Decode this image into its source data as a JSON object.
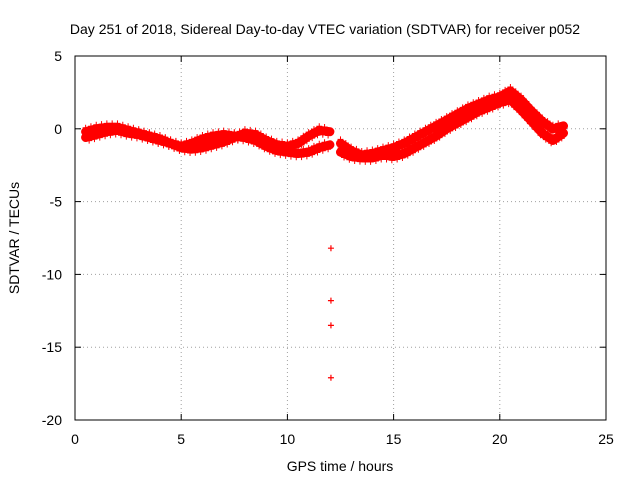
{
  "chart_data": {
    "type": "scatter",
    "title": "Day 251 of 2018, Sidereal Day-to-day VTEC variation (SDTVAR) for receiver p052",
    "xlabel": "GPS time / hours",
    "ylabel": "SDTVAR / TECUs",
    "xlim": [
      0,
      25
    ],
    "ylim": [
      -20,
      5
    ],
    "x_ticks": [
      0,
      5,
      10,
      15,
      20,
      25
    ],
    "y_ticks": [
      5,
      0,
      -5,
      -10,
      -15,
      -20
    ],
    "grid": true,
    "marker": "+",
    "series": [
      {
        "name": "SDTVAR",
        "color": "#ff0000",
        "tracks": [
          [
            [
              0.5,
              -0.6
            ],
            [
              1,
              -0.4
            ],
            [
              1.5,
              -0.2
            ],
            [
              2,
              -0.1
            ],
            [
              2.5,
              -0.3
            ],
            [
              3,
              -0.4
            ],
            [
              3.5,
              -0.6
            ],
            [
              4,
              -0.8
            ],
            [
              4.5,
              -1.0
            ],
            [
              5,
              -1.2
            ],
            [
              5.5,
              -1.0
            ],
            [
              6,
              -0.7
            ],
            [
              6.5,
              -0.5
            ],
            [
              7,
              -0.4
            ],
            [
              7.5,
              -0.5
            ],
            [
              8,
              -0.6
            ],
            [
              8.5,
              -0.8
            ],
            [
              9,
              -1.2
            ],
            [
              9.5,
              -1.5
            ],
            [
              10,
              -1.6
            ],
            [
              10.5,
              -1.7
            ],
            [
              11,
              -1.6
            ],
            [
              11.5,
              -1.3
            ],
            [
              12,
              -1.1
            ]
          ],
          [
            [
              0.5,
              -0.2
            ],
            [
              1,
              0
            ],
            [
              1.5,
              0.1
            ],
            [
              2,
              0.1
            ],
            [
              2.5,
              -0.1
            ],
            [
              3,
              -0.3
            ],
            [
              3.5,
              -0.5
            ],
            [
              4,
              -0.7
            ],
            [
              4.5,
              -1.0
            ],
            [
              5,
              -1.3
            ],
            [
              5.5,
              -1.4
            ],
            [
              6,
              -1.3
            ],
            [
              6.5,
              -1.1
            ],
            [
              7,
              -0.9
            ],
            [
              7.5,
              -0.6
            ],
            [
              8,
              -0.3
            ],
            [
              8.5,
              -0.4
            ],
            [
              9,
              -0.8
            ],
            [
              9.5,
              -1.1
            ],
            [
              10,
              -1.2
            ],
            [
              10.5,
              -1.0
            ],
            [
              11,
              -0.5
            ],
            [
              11.5,
              -0.1
            ],
            [
              12,
              -0.2
            ]
          ],
          [
            [
              12.5,
              -1.0
            ],
            [
              13,
              -1.5
            ],
            [
              13.5,
              -1.8
            ],
            [
              14,
              -1.7
            ],
            [
              14.5,
              -1.5
            ],
            [
              15,
              -1.3
            ],
            [
              15.5,
              -1.0
            ],
            [
              16,
              -0.6
            ],
            [
              16.5,
              -0.2
            ],
            [
              17,
              0.2
            ],
            [
              17.5,
              0.6
            ],
            [
              18,
              1.0
            ],
            [
              18.5,
              1.4
            ],
            [
              19,
              1.7
            ],
            [
              19.5,
              2.0
            ],
            [
              20,
              2.2
            ],
            [
              20.5,
              2.6
            ],
            [
              21,
              2.0
            ],
            [
              21.5,
              1.2
            ],
            [
              22,
              0.5
            ],
            [
              22.5,
              0
            ],
            [
              23,
              0.2
            ]
          ],
          [
            [
              12.5,
              -1.6
            ],
            [
              13,
              -1.9
            ],
            [
              13.5,
              -2.0
            ],
            [
              14,
              -2.0
            ],
            [
              14.5,
              -1.8
            ],
            [
              15,
              -1.9
            ],
            [
              15.5,
              -1.7
            ],
            [
              16,
              -1.3
            ],
            [
              16.5,
              -0.9
            ],
            [
              17,
              -0.5
            ],
            [
              17.5,
              0
            ],
            [
              18,
              0.4
            ],
            [
              18.5,
              0.8
            ],
            [
              19,
              1.2
            ],
            [
              19.5,
              1.5
            ],
            [
              20,
              1.8
            ],
            [
              20.5,
              2.0
            ],
            [
              21,
              1.3
            ],
            [
              21.5,
              0.5
            ],
            [
              22,
              -0.3
            ],
            [
              22.5,
              -0.8
            ],
            [
              23,
              -0.3
            ]
          ]
        ],
        "isolated_points": [
          [
            12.05,
            -8.2
          ],
          [
            12.05,
            -11.8
          ],
          [
            12.05,
            -13.5
          ],
          [
            12.05,
            -17.1
          ]
        ]
      }
    ]
  }
}
